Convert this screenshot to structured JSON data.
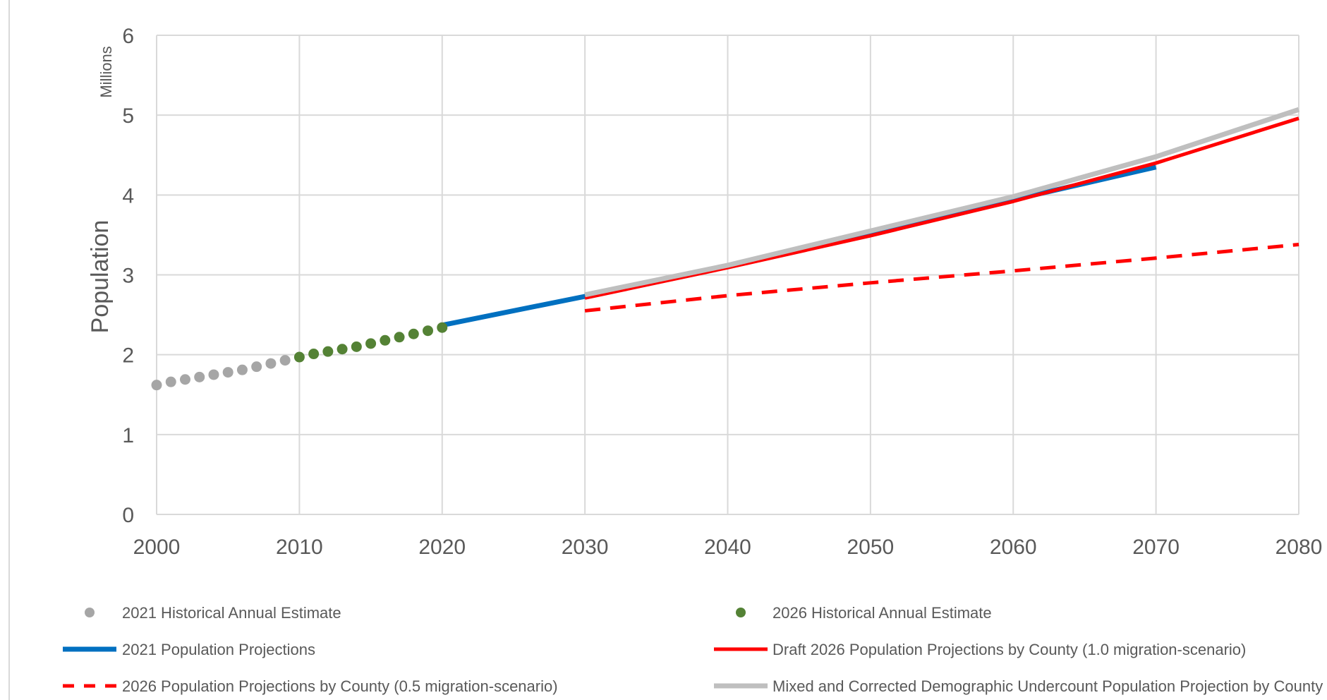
{
  "chart_data": {
    "type": "line",
    "title": "",
    "ylabel": "Population",
    "yunits": "Millions",
    "xlim": [
      2000,
      2080
    ],
    "ylim": [
      0,
      6
    ],
    "x_ticks": [
      2000,
      2010,
      2020,
      2030,
      2040,
      2050,
      2060,
      2070,
      2080
    ],
    "y_ticks": [
      0,
      1,
      2,
      3,
      4,
      5,
      6
    ],
    "grid": true,
    "legend_placement": "bottom",
    "series": [
      {
        "name": "2021 Historical Annual Estimate",
        "style": "markers",
        "color": "#a6a6a6",
        "x": [
          2000,
          2001,
          2002,
          2003,
          2004,
          2005,
          2006,
          2007,
          2008,
          2009
        ],
        "y": [
          1.62,
          1.66,
          1.69,
          1.72,
          1.75,
          1.78,
          1.81,
          1.85,
          1.89,
          1.93
        ]
      },
      {
        "name": "2026 Historical Annual Estimate",
        "style": "markers",
        "color": "#548235",
        "x": [
          2010,
          2011,
          2012,
          2013,
          2014,
          2015,
          2016,
          2017,
          2018,
          2019,
          2020
        ],
        "y": [
          1.97,
          2.01,
          2.04,
          2.07,
          2.1,
          2.14,
          2.18,
          2.22,
          2.26,
          2.3,
          2.34
        ]
      },
      {
        "name": "2021 Population Projections",
        "style": "solid",
        "color": "#0070c0",
        "x": [
          2020,
          2030,
          2040,
          2050,
          2060,
          2070
        ],
        "y": [
          2.37,
          2.73,
          3.11,
          3.52,
          3.94,
          4.35
        ]
      },
      {
        "name": "Draft 2026 Population Projections by County (1.0 migration-scenario)",
        "style": "solid",
        "color": "#ff0000",
        "x": [
          2030,
          2040,
          2050,
          2060,
          2070,
          2080
        ],
        "y": [
          2.71,
          3.09,
          3.49,
          3.92,
          4.4,
          4.96
        ]
      },
      {
        "name": "2026 Population Projections by County (0.5 migration-scenario)",
        "style": "dashed",
        "color": "#ff0000",
        "x": [
          2030,
          2040,
          2050,
          2060,
          2070,
          2080
        ],
        "y": [
          2.55,
          2.74,
          2.9,
          3.05,
          3.21,
          3.38
        ]
      },
      {
        "name": "Mixed and Corrected Demographic Undercount Population Projection by County",
        "style": "solid",
        "color": "#bfbfbf",
        "x": [
          2030,
          2040,
          2050,
          2060,
          2070,
          2080
        ],
        "y": [
          2.75,
          3.12,
          3.55,
          3.98,
          4.48,
          5.07
        ]
      }
    ]
  }
}
